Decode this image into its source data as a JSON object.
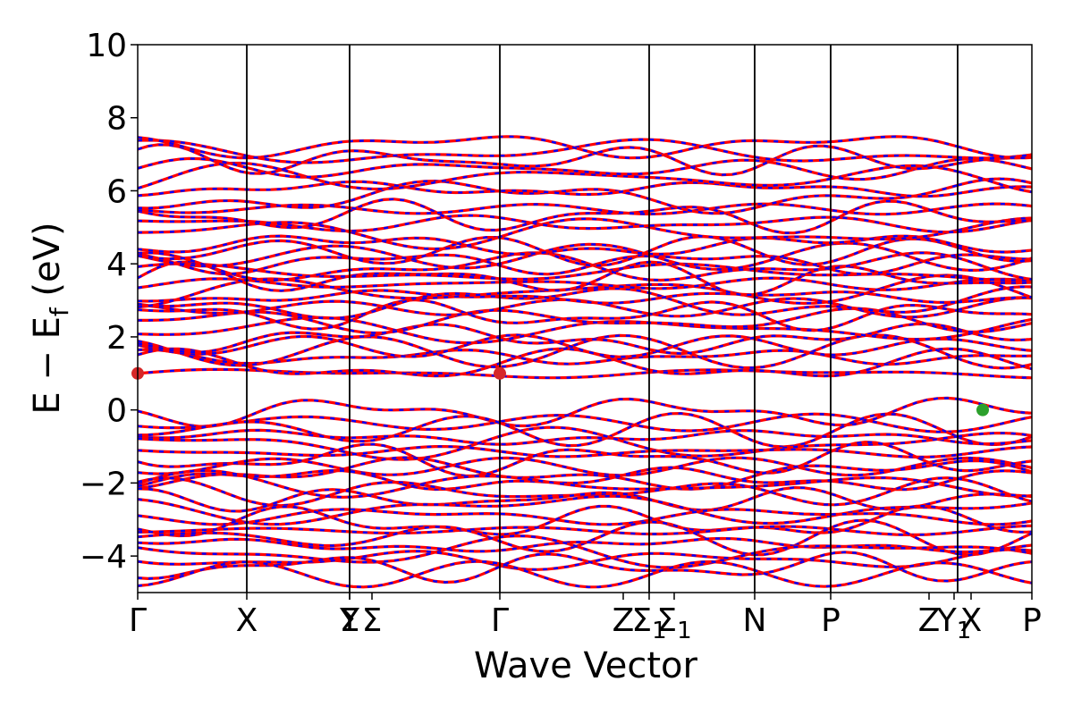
{
  "chart_data": {
    "type": "line",
    "xlabel": "Wave Vector",
    "ylabel_main": "E − E",
    "ylabel_sub": "f",
    "ylabel_unit": " (eV)",
    "ylim": [
      -5,
      10
    ],
    "yticks": [
      -4,
      -2,
      0,
      2,
      4,
      6,
      8,
      10
    ],
    "ytick_labels": [
      "−4",
      "−2",
      "0",
      "2",
      "4",
      "6",
      "8",
      "10"
    ],
    "xlim": [
      0,
      10
    ],
    "kpoints": [
      {
        "x": 0.0,
        "base": "Γ",
        "sub": ""
      },
      {
        "x": 1.22,
        "base": "X",
        "sub": ""
      },
      {
        "x": 2.37,
        "base": "Y",
        "sub": ""
      },
      {
        "x": 2.37,
        "base": "Σ",
        "sub": ""
      },
      {
        "x": 2.62,
        "base": "Σ",
        "sub": ""
      },
      {
        "x": 4.05,
        "base": "Γ",
        "sub": ""
      },
      {
        "x": 5.43,
        "base": "Z",
        "sub": ""
      },
      {
        "x": 5.72,
        "base": "Σ",
        "sub": "1"
      },
      {
        "x": 6.0,
        "base": "Σ",
        "sub": "1"
      },
      {
        "x": 6.9,
        "base": "N",
        "sub": ""
      },
      {
        "x": 7.75,
        "base": "P",
        "sub": ""
      },
      {
        "x": 8.85,
        "base": "Z",
        "sub": ""
      },
      {
        "x": 9.13,
        "base": "Y",
        "sub": "1"
      },
      {
        "x": 9.32,
        "base": "X",
        "sub": ""
      },
      {
        "x": 10.0,
        "base": "P",
        "sub": ""
      }
    ],
    "vertical_lines": [
      1.22,
      2.37,
      4.05,
      5.72,
      6.9,
      7.75,
      9.17
    ],
    "segments": [
      {
        "x0": 0.0,
        "x1": 9.17
      },
      {
        "x0": 9.17,
        "x1": 10.0
      }
    ],
    "series": [
      {
        "color": "#ff0000",
        "style": "solid"
      },
      {
        "color": "#0000ff",
        "style": "dashed"
      }
    ],
    "bands": {
      "conduction": [
        1.0,
        1.2,
        1.45,
        1.6,
        1.75,
        1.95,
        2.2,
        2.45,
        2.6,
        2.8,
        2.95,
        3.1,
        3.25,
        3.45,
        3.6,
        3.75,
        3.9,
        4.05,
        4.2,
        4.35,
        4.5,
        4.85,
        5.1,
        5.3,
        5.5,
        5.85,
        6.05,
        6.35,
        6.6,
        6.85,
        7.05,
        7.25
      ],
      "valence": [
        -0.05,
        -0.35,
        -0.55,
        -0.75,
        -0.95,
        -1.15,
        -1.35,
        -1.55,
        -1.75,
        -1.9,
        -2.05,
        -2.25,
        -2.45,
        -2.7,
        -2.9,
        -3.1,
        -3.3,
        -3.5,
        -3.7,
        -3.9,
        -4.1,
        -4.3,
        -4.5
      ]
    },
    "markers": [
      {
        "x": 0.0,
        "y": 1.0,
        "color": "#d62728"
      },
      {
        "x": 4.05,
        "y": 1.0,
        "color": "#d62728"
      },
      {
        "x": 9.45,
        "y": 0.0,
        "color": "#2ca02c"
      }
    ],
    "grid": false,
    "legend": "none"
  }
}
